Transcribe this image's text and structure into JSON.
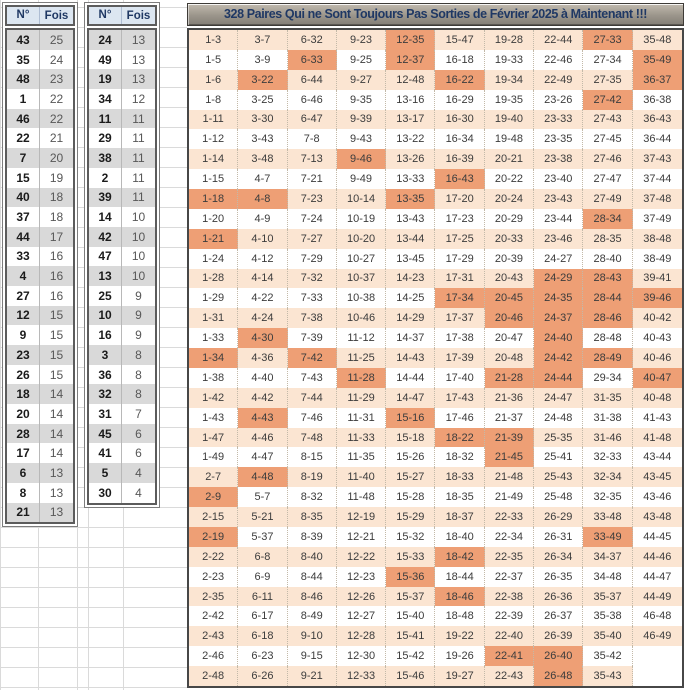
{
  "colors": {
    "highlight": "#EE9F75",
    "row_alt_peach": "#FBE5D2",
    "row_base": "#FFFFFF",
    "table_header_bg": "#DCE6F1",
    "navy_text": "#1F3864",
    "stripe_gray": "#D9D9D9",
    "title_bg_top": "#C1BAAE",
    "title_bg_bottom": "#837E76"
  },
  "left_tables": [
    {
      "headers": [
        "N°",
        "Fois"
      ],
      "rows": [
        [
          "43",
          "25"
        ],
        [
          "35",
          "24"
        ],
        [
          "48",
          "23"
        ],
        [
          "1",
          "22"
        ],
        [
          "46",
          "22"
        ],
        [
          "22",
          "21"
        ],
        [
          "7",
          "20"
        ],
        [
          "15",
          "19"
        ],
        [
          "40",
          "18"
        ],
        [
          "37",
          "18"
        ],
        [
          "44",
          "17"
        ],
        [
          "33",
          "16"
        ],
        [
          "4",
          "16"
        ],
        [
          "27",
          "16"
        ],
        [
          "12",
          "15"
        ],
        [
          "9",
          "15"
        ],
        [
          "23",
          "15"
        ],
        [
          "26",
          "15"
        ],
        [
          "18",
          "14"
        ],
        [
          "20",
          "14"
        ],
        [
          "28",
          "14"
        ],
        [
          "17",
          "14"
        ],
        [
          "6",
          "13"
        ],
        [
          "8",
          "13"
        ],
        [
          "21",
          "13"
        ]
      ]
    },
    {
      "headers": [
        "N°",
        "Fois"
      ],
      "rows": [
        [
          "24",
          "13"
        ],
        [
          "49",
          "13"
        ],
        [
          "19",
          "13"
        ],
        [
          "34",
          "12"
        ],
        [
          "11",
          "11"
        ],
        [
          "29",
          "11"
        ],
        [
          "38",
          "11"
        ],
        [
          "2",
          "11"
        ],
        [
          "39",
          "11"
        ],
        [
          "14",
          "10"
        ],
        [
          "42",
          "10"
        ],
        [
          "47",
          "10"
        ],
        [
          "13",
          "10"
        ],
        [
          "25",
          "9"
        ],
        [
          "10",
          "9"
        ],
        [
          "16",
          "9"
        ],
        [
          "3",
          "8"
        ],
        [
          "36",
          "8"
        ],
        [
          "32",
          "8"
        ],
        [
          "31",
          "7"
        ],
        [
          "45",
          "6"
        ],
        [
          "41",
          "6"
        ],
        [
          "5",
          "4"
        ],
        [
          "30",
          "4"
        ]
      ]
    }
  ],
  "main_grid": {
    "title": "328 Paires Qui ne Sont Toujours Pas Sorties de Février 2025 à Maintenant !!!",
    "rows": [
      [
        "1-3",
        "3-7",
        "6-32",
        "9-23",
        "12-35",
        "15-47",
        "19-28",
        "22-44",
        "27-33",
        "35-48"
      ],
      [
        "1-5",
        "3-9",
        "6-33",
        "9-25",
        "12-37",
        "16-18",
        "19-33",
        "22-46",
        "27-34",
        "35-49"
      ],
      [
        "1-6",
        "3-22",
        "6-44",
        "9-27",
        "12-48",
        "16-22",
        "19-34",
        "22-49",
        "27-35",
        "36-37"
      ],
      [
        "1-8",
        "3-25",
        "6-46",
        "9-35",
        "13-16",
        "16-29",
        "19-35",
        "23-26",
        "27-42",
        "36-38"
      ],
      [
        "1-11",
        "3-30",
        "6-47",
        "9-39",
        "13-17",
        "16-30",
        "19-40",
        "23-33",
        "27-43",
        "36-43"
      ],
      [
        "1-12",
        "3-43",
        "7-8",
        "9-43",
        "13-22",
        "16-34",
        "19-48",
        "23-35",
        "27-45",
        "36-44"
      ],
      [
        "1-14",
        "3-48",
        "7-13",
        "9-46",
        "13-26",
        "16-39",
        "20-21",
        "23-38",
        "27-46",
        "37-43"
      ],
      [
        "1-15",
        "4-7",
        "7-21",
        "9-49",
        "13-33",
        "16-43",
        "20-22",
        "23-40",
        "27-47",
        "37-44"
      ],
      [
        "1-18",
        "4-8",
        "7-23",
        "10-14",
        "13-35",
        "17-20",
        "20-24",
        "23-43",
        "27-49",
        "37-48"
      ],
      [
        "1-20",
        "4-9",
        "7-24",
        "10-19",
        "13-43",
        "17-23",
        "20-29",
        "23-44",
        "28-34",
        "37-49"
      ],
      [
        "1-21",
        "4-10",
        "7-27",
        "10-20",
        "13-44",
        "17-25",
        "20-33",
        "23-46",
        "28-35",
        "38-48"
      ],
      [
        "1-24",
        "4-12",
        "7-29",
        "10-27",
        "13-45",
        "17-29",
        "20-39",
        "24-27",
        "28-40",
        "38-49"
      ],
      [
        "1-28",
        "4-14",
        "7-32",
        "10-37",
        "14-23",
        "17-31",
        "20-43",
        "24-29",
        "28-43",
        "39-41"
      ],
      [
        "1-29",
        "4-22",
        "7-33",
        "10-38",
        "14-25",
        "17-34",
        "20-45",
        "24-35",
        "28-44",
        "39-46"
      ],
      [
        "1-31",
        "4-24",
        "7-38",
        "10-46",
        "14-29",
        "17-37",
        "20-46",
        "24-37",
        "28-46",
        "40-42"
      ],
      [
        "1-33",
        "4-30",
        "7-39",
        "11-12",
        "14-37",
        "17-38",
        "20-47",
        "24-40",
        "28-48",
        "40-43"
      ],
      [
        "1-34",
        "4-36",
        "7-42",
        "11-25",
        "14-43",
        "17-39",
        "20-48",
        "24-42",
        "28-49",
        "40-46"
      ],
      [
        "1-38",
        "4-40",
        "7-43",
        "11-28",
        "14-44",
        "17-40",
        "21-28",
        "24-44",
        "29-34",
        "40-47"
      ],
      [
        "1-42",
        "4-42",
        "7-44",
        "11-29",
        "14-47",
        "17-43",
        "21-36",
        "24-47",
        "31-35",
        "40-48"
      ],
      [
        "1-43",
        "4-43",
        "7-46",
        "11-31",
        "15-16",
        "17-46",
        "21-37",
        "24-48",
        "31-38",
        "41-43"
      ],
      [
        "1-47",
        "4-46",
        "7-48",
        "11-33",
        "15-18",
        "18-22",
        "21-39",
        "25-35",
        "31-46",
        "41-48"
      ],
      [
        "1-49",
        "4-47",
        "8-15",
        "11-35",
        "15-26",
        "18-32",
        "21-45",
        "25-41",
        "32-33",
        "43-44"
      ],
      [
        "2-7",
        "4-48",
        "8-19",
        "11-40",
        "15-27",
        "18-33",
        "21-48",
        "25-43",
        "32-34",
        "43-45"
      ],
      [
        "2-9",
        "5-7",
        "8-32",
        "11-48",
        "15-28",
        "18-35",
        "21-49",
        "25-48",
        "32-35",
        "43-46"
      ],
      [
        "2-15",
        "5-21",
        "8-35",
        "12-19",
        "15-29",
        "18-37",
        "22-33",
        "26-29",
        "33-48",
        "43-48"
      ],
      [
        "2-19",
        "5-37",
        "8-39",
        "12-21",
        "15-32",
        "18-40",
        "22-34",
        "26-31",
        "33-49",
        "44-45"
      ],
      [
        "2-22",
        "6-8",
        "8-40",
        "12-22",
        "15-33",
        "18-42",
        "22-35",
        "26-34",
        "34-37",
        "44-46"
      ],
      [
        "2-23",
        "6-9",
        "8-44",
        "12-23",
        "15-36",
        "18-44",
        "22-37",
        "26-35",
        "34-48",
        "44-47"
      ],
      [
        "2-35",
        "6-11",
        "8-46",
        "12-26",
        "15-37",
        "18-46",
        "22-38",
        "26-36",
        "35-37",
        "44-49"
      ],
      [
        "2-42",
        "6-17",
        "8-49",
        "12-27",
        "15-40",
        "18-48",
        "22-39",
        "26-37",
        "35-38",
        "46-48"
      ],
      [
        "2-43",
        "6-18",
        "9-10",
        "12-28",
        "15-41",
        "19-22",
        "22-40",
        "26-39",
        "35-40",
        "46-49"
      ],
      [
        "2-46",
        "6-23",
        "9-15",
        "12-30",
        "15-42",
        "19-26",
        "22-41",
        "26-40",
        "35-42",
        ""
      ],
      [
        "2-48",
        "6-26",
        "9-21",
        "12-33",
        "15-46",
        "19-27",
        "22-43",
        "26-48",
        "35-43",
        ""
      ]
    ],
    "highlighted_pairs": [
      "12-35",
      "27-33",
      "6-33",
      "12-37",
      "35-49",
      "3-22",
      "16-22",
      "36-37",
      "27-42",
      "9-46",
      "16-43",
      "1-18",
      "4-8",
      "13-35",
      "28-34",
      "1-21",
      "24-29",
      "28-43",
      "17-34",
      "20-45",
      "24-35",
      "28-44",
      "39-46",
      "20-46",
      "24-37",
      "28-46",
      "4-30",
      "24-40",
      "1-34",
      "7-42",
      "24-42",
      "28-49",
      "11-28",
      "21-28",
      "24-44",
      "40-47",
      "4-43",
      "15-16",
      "18-22",
      "21-39",
      "21-45",
      "4-48",
      "2-9",
      "2-19",
      "33-49",
      "18-42",
      "15-36",
      "18-46",
      "22-41",
      "26-40",
      "26-48"
    ]
  }
}
